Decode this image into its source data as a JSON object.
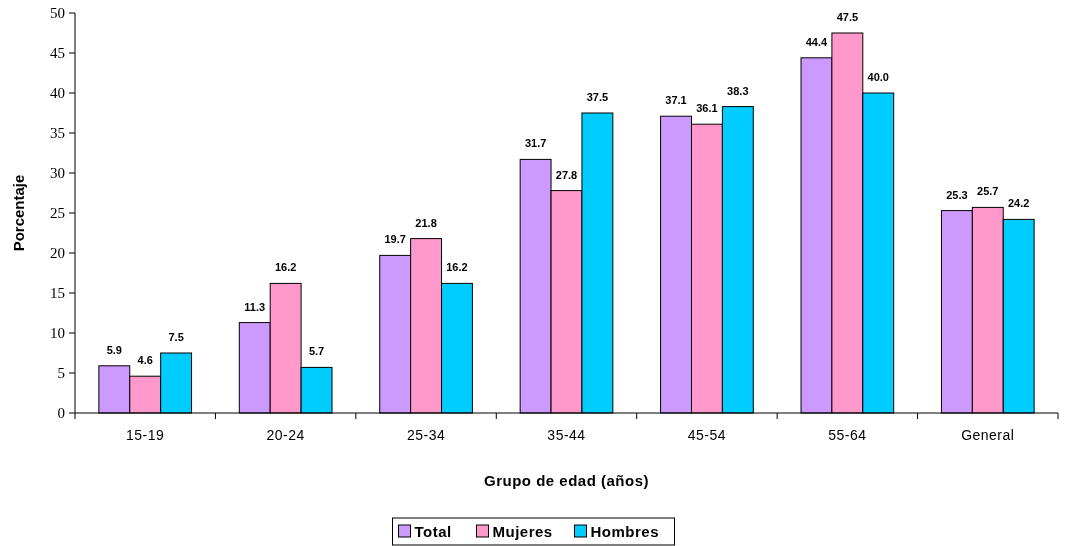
{
  "chart_data": {
    "type": "bar",
    "xlabel": "Grupo de edad (años)",
    "ylabel": "Porcentaje",
    "categories": [
      "15-19",
      "20-24",
      "25-34",
      "35-44",
      "45-54",
      "55-64",
      "General"
    ],
    "series": [
      {
        "name": "Total",
        "color": "#cc99ff",
        "values": [
          5.9,
          11.3,
          19.7,
          31.7,
          37.1,
          44.4,
          25.3
        ],
        "value_labels": [
          "5.9",
          "11.3",
          "19.7",
          "31.7",
          "37.1",
          "44.4",
          "25.3"
        ]
      },
      {
        "name": "Mujeres",
        "color": "#ff99cc",
        "values": [
          4.6,
          16.2,
          21.8,
          27.8,
          36.1,
          47.5,
          25.7
        ],
        "value_labels": [
          "4.6",
          "16.2",
          "21.8",
          "27.8",
          "36.1",
          "47.5",
          "25.7"
        ]
      },
      {
        "name": "Hombres",
        "color": "#00ccff",
        "values": [
          7.5,
          5.7,
          16.2,
          37.5,
          38.3,
          40.0,
          24.2
        ],
        "value_labels": [
          "7.5",
          "5.7",
          "16.2",
          "37.5",
          "38.3",
          "40.0",
          "24.2"
        ]
      }
    ],
    "ylim": [
      0,
      50
    ],
    "yticks": [
      0,
      5,
      10,
      15,
      20,
      25,
      30,
      35,
      40,
      45,
      50
    ],
    "grid": false,
    "legend": "bottom"
  }
}
